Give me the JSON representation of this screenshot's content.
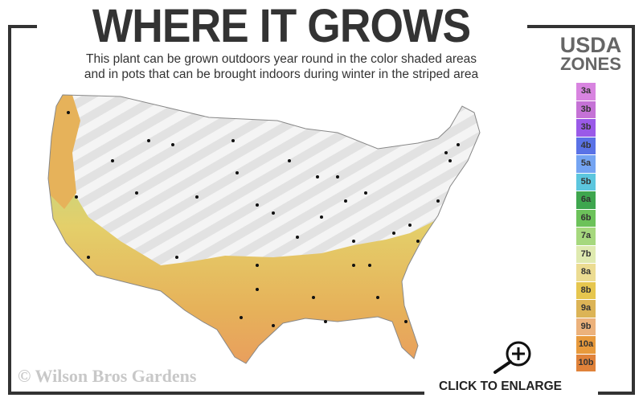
{
  "header": {
    "title": "WHERE IT GROWS",
    "subtitle_line1": "This plant can be grown outdoors year round in the color shaded areas",
    "subtitle_line2": "and in pots that can be brought indoors during winter in the striped area"
  },
  "legend": {
    "title_line1": "USDA",
    "title_line2": "ZONES",
    "zones": [
      {
        "label": "3a",
        "color": "#d884e0"
      },
      {
        "label": "3b",
        "color": "#c572d6"
      },
      {
        "label": "3b",
        "color": "#9a5ae8"
      },
      {
        "label": "4b",
        "color": "#5a72e6"
      },
      {
        "label": "5a",
        "color": "#74a4f2"
      },
      {
        "label": "5b",
        "color": "#5cc6de"
      },
      {
        "label": "6a",
        "color": "#3ea64e"
      },
      {
        "label": "6b",
        "color": "#6cc25a"
      },
      {
        "label": "7a",
        "color": "#a6d87e"
      },
      {
        "label": "7b",
        "color": "#dfeab0"
      },
      {
        "label": "8a",
        "color": "#ecdc92"
      },
      {
        "label": "8b",
        "color": "#e6c64e"
      },
      {
        "label": "9a",
        "color": "#dcb456"
      },
      {
        "label": "9b",
        "color": "#ecb27c"
      },
      {
        "label": "10a",
        "color": "#e89a3c"
      },
      {
        "label": "10b",
        "color": "#e0823a"
      }
    ]
  },
  "map": {
    "region": "United States",
    "shaded_colors": [
      "#b8d888",
      "#e4cf6a",
      "#e6b25a",
      "#e99a5e"
    ],
    "striped_color": "#e6e6e6"
  },
  "watermark": "© Wilson Bros Gardens",
  "enlarge": {
    "label": "CLICK TO ENLARGE",
    "icon": "zoom-in-icon"
  }
}
